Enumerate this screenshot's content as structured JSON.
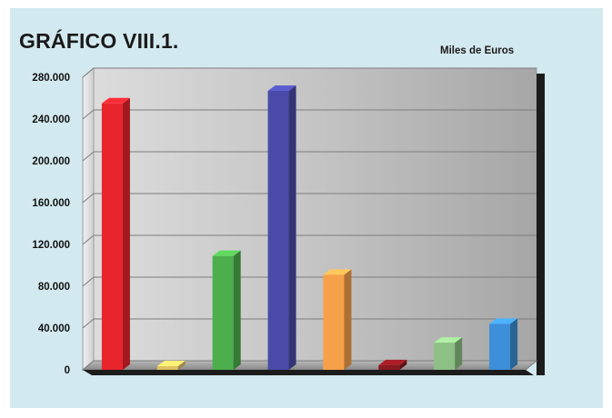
{
  "figure": {
    "title": "GRÁFICO VIII.1.",
    "units": "Miles de Euros"
  },
  "chart_data": {
    "type": "bar",
    "title": "GRÁFICO VIII.1.",
    "ylabel": "Miles de Euros",
    "xlabel": "",
    "ylim": [
      0,
      280000
    ],
    "yticks": [
      0,
      40000,
      80000,
      120000,
      160000,
      200000,
      240000,
      280000
    ],
    "ytick_labels": [
      "0",
      "40.000",
      "80.000",
      "120.000",
      "160.000",
      "200.000",
      "240.000",
      "280.000"
    ],
    "grid": true,
    "values": [
      255000,
      3500,
      109000,
      267000,
      91000,
      4500,
      26000,
      44000
    ],
    "colors": [
      "#e8242c",
      "#e0c060",
      "#4cae4c",
      "#4a4aa8",
      "#f7a04a",
      "#8a1820",
      "#8cc084",
      "#3c8fd8"
    ]
  }
}
